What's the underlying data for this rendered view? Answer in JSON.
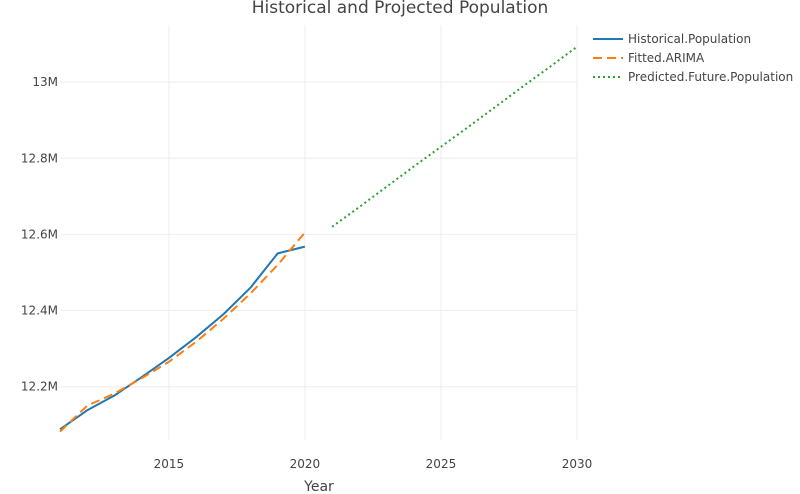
{
  "chart_data": {
    "type": "line",
    "title": "Historical and Projected Population",
    "xlabel": "Year",
    "ylabel": "",
    "xlim": [
      2011,
      2030
    ],
    "ylim": [
      12060000,
      13150000
    ],
    "x_ticks": [
      2015,
      2020,
      2025,
      2030
    ],
    "y_ticks": [
      12200000,
      12400000,
      12600000,
      12800000,
      13000000
    ],
    "y_tick_labels": [
      "12.2M",
      "12.4M",
      "12.6M",
      "12.8M",
      "13M"
    ],
    "legend_position": "top-right",
    "grid": true,
    "series": [
      {
        "name": "Historical.Population",
        "color": "#1f77b4",
        "dash": "solid",
        "x": [
          2011,
          2012,
          2013,
          2014,
          2015,
          2016,
          2017,
          2018,
          2019,
          2020
        ],
        "y": [
          12088000,
          12138000,
          12177000,
          12225000,
          12275000,
          12330000,
          12390000,
          12460000,
          12550000,
          12568000
        ]
      },
      {
        "name": "Fitted.ARIMA",
        "color": "#ff7f0e",
        "dash": "dash",
        "x": [
          2011,
          2012,
          2013,
          2014,
          2015,
          2016,
          2017,
          2018,
          2019,
          2020
        ],
        "y": [
          12082000,
          12150000,
          12182000,
          12222000,
          12265000,
          12318000,
          12378000,
          12445000,
          12520000,
          12605000
        ]
      },
      {
        "name": "Predicted.Future.Population",
        "color": "#2ca02c",
        "dash": "dot",
        "x": [
          2021,
          2022,
          2023,
          2024,
          2025,
          2026,
          2027,
          2028,
          2029,
          2030
        ],
        "y": [
          12620000,
          12672000,
          12725000,
          12778000,
          12830000,
          12882000,
          12935000,
          12988000,
          13040000,
          13093000
        ]
      }
    ]
  }
}
